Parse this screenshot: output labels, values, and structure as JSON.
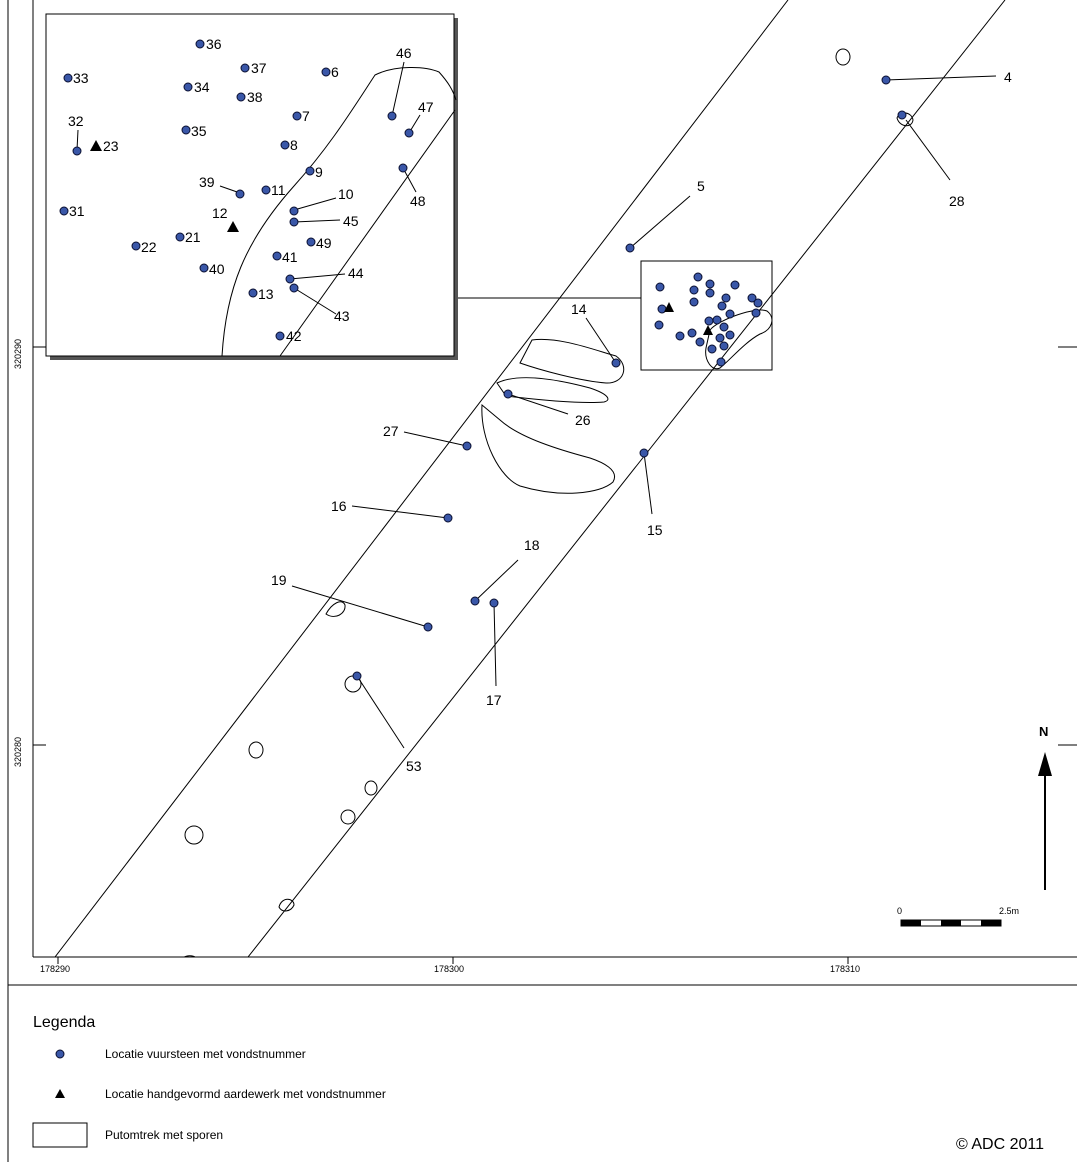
{
  "colors": {
    "find_dot": "#3a57a8",
    "line": "#000000",
    "background": "#ffffff"
  },
  "axes": {
    "x_ticks": [
      "178290",
      "178300",
      "178310"
    ],
    "y_ticks": [
      "320290",
      "320280"
    ]
  },
  "north": {
    "label": "N"
  },
  "scale": {
    "start": "0",
    "end": "2.5m"
  },
  "map_labels": {
    "l4": "4",
    "l5": "5",
    "l14": "14",
    "l15": "15",
    "l16": "16",
    "l17": "17",
    "l18": "18",
    "l19": "19",
    "l26": "26",
    "l27": "27",
    "l28": "28",
    "l53": "53"
  },
  "inset_labels": {
    "l6": "6",
    "l7": "7",
    "l8": "8",
    "l9": "9",
    "l10": "10",
    "l11": "11",
    "l12": "12",
    "l13": "13",
    "l21": "21",
    "l22": "22",
    "l23": "23",
    "l31": "31",
    "l32": "32",
    "l33": "33",
    "l34": "34",
    "l35": "35",
    "l36": "36",
    "l37": "37",
    "l38": "38",
    "l39": "39",
    "l40": "40",
    "l41": "41",
    "l42": "42",
    "l43": "43",
    "l44": "44",
    "l45": "45",
    "l46": "46",
    "l47": "47",
    "l48": "48",
    "l49": "49"
  },
  "legend": {
    "title": "Legenda",
    "items": [
      {
        "symbol": "blue-dot",
        "label": "Locatie vuursteen met vondstnummer"
      },
      {
        "symbol": "black-triangle",
        "label": "Locatie handgevormd aardewerk met vondstnummer"
      },
      {
        "symbol": "outline-box",
        "label": "Putomtrek met sporen"
      }
    ]
  },
  "copyright": "© ADC 2011"
}
